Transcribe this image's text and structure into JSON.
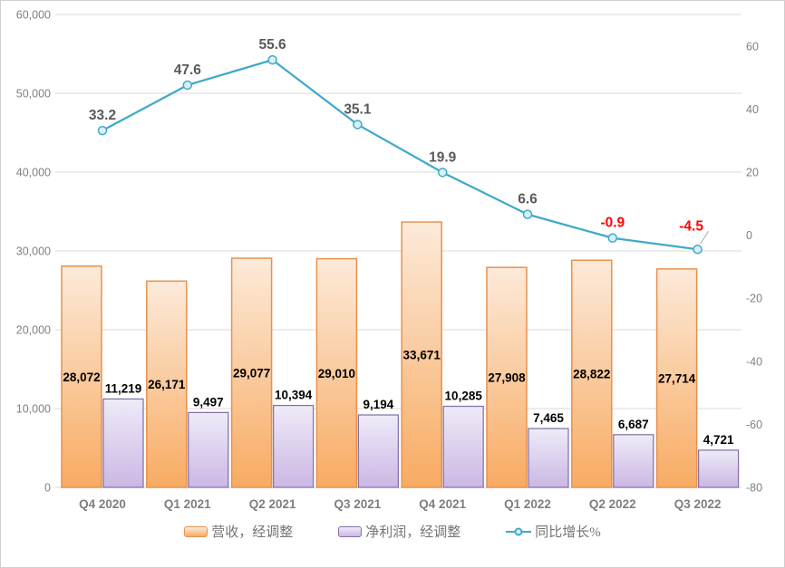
{
  "chart_data": {
    "type": "combo",
    "categories": [
      "Q4 2020",
      "Q1 2021",
      "Q2 2021",
      "Q3 2021",
      "Q4 2021",
      "Q1 2022",
      "Q2 2022",
      "Q3 2022"
    ],
    "series": [
      {
        "name": "营收，经调整",
        "type": "bar",
        "axis": "left",
        "values": [
          28072,
          26171,
          29077,
          29010,
          33671,
          27908,
          28822,
          27714
        ],
        "labels": [
          "28,072",
          "26,171",
          "29,077",
          "29,010",
          "33,671",
          "27,908",
          "28,822",
          "27,714"
        ],
        "label_position": "inside-center",
        "fill_top": "#FCEADA",
        "fill_bottom": "#F8AB62",
        "border": "#E8914E"
      },
      {
        "name": "净利润，经调整",
        "type": "bar",
        "axis": "left",
        "values": [
          11219,
          9497,
          10394,
          9194,
          10285,
          7465,
          6687,
          4721
        ],
        "labels": [
          "11,219",
          "9,497",
          "10,394",
          "9,194",
          "10,285",
          "7,465",
          "6,687",
          "4,721"
        ],
        "label_position": "outside-end",
        "fill_top": "#EFEBF8",
        "fill_bottom": "#CBB7E4",
        "border": "#8471A8"
      },
      {
        "name": "同比增长%",
        "type": "line",
        "axis": "right",
        "values": [
          33.2,
          47.6,
          55.6,
          35.1,
          19.9,
          6.6,
          -0.9,
          -4.5
        ],
        "labels": [
          "33.2",
          "47.6",
          "55.6",
          "35.1",
          "19.9",
          "6.6",
          "-0.9",
          "-4.5"
        ],
        "label_colors": [
          "#595959",
          "#595959",
          "#595959",
          "#595959",
          "#595959",
          "#595959",
          "#FF0000",
          "#FF0000"
        ],
        "leader_on_last": true,
        "color": "#3FA9C9",
        "marker_fill": "#D9F0F8"
      }
    ],
    "left_axis": {
      "min": 0,
      "max": 60000,
      "tick_values": [
        0,
        10000,
        20000,
        30000,
        40000,
        50000,
        60000
      ],
      "tick_labels": [
        "0",
        "10,000",
        "20,000",
        "30,000",
        "40,000",
        "50,000",
        "60,000"
      ]
    },
    "right_axis": {
      "min": -80,
      "max": 70,
      "tick_values": [
        -80,
        -60,
        -40,
        -20,
        0,
        20,
        40,
        60
      ],
      "tick_labels": [
        "-80",
        "-60",
        "-40",
        "-20",
        "0",
        "20",
        "40",
        "60"
      ]
    },
    "grid": true,
    "legend_position": "bottom"
  },
  "colors": {
    "gridline": "#D9D9D9",
    "axis_text": "#808080",
    "bar_label": "#000000",
    "leader_line": "#A6A6A6",
    "chart_border": "#CFCFCF",
    "background": "#FFFFFF"
  }
}
